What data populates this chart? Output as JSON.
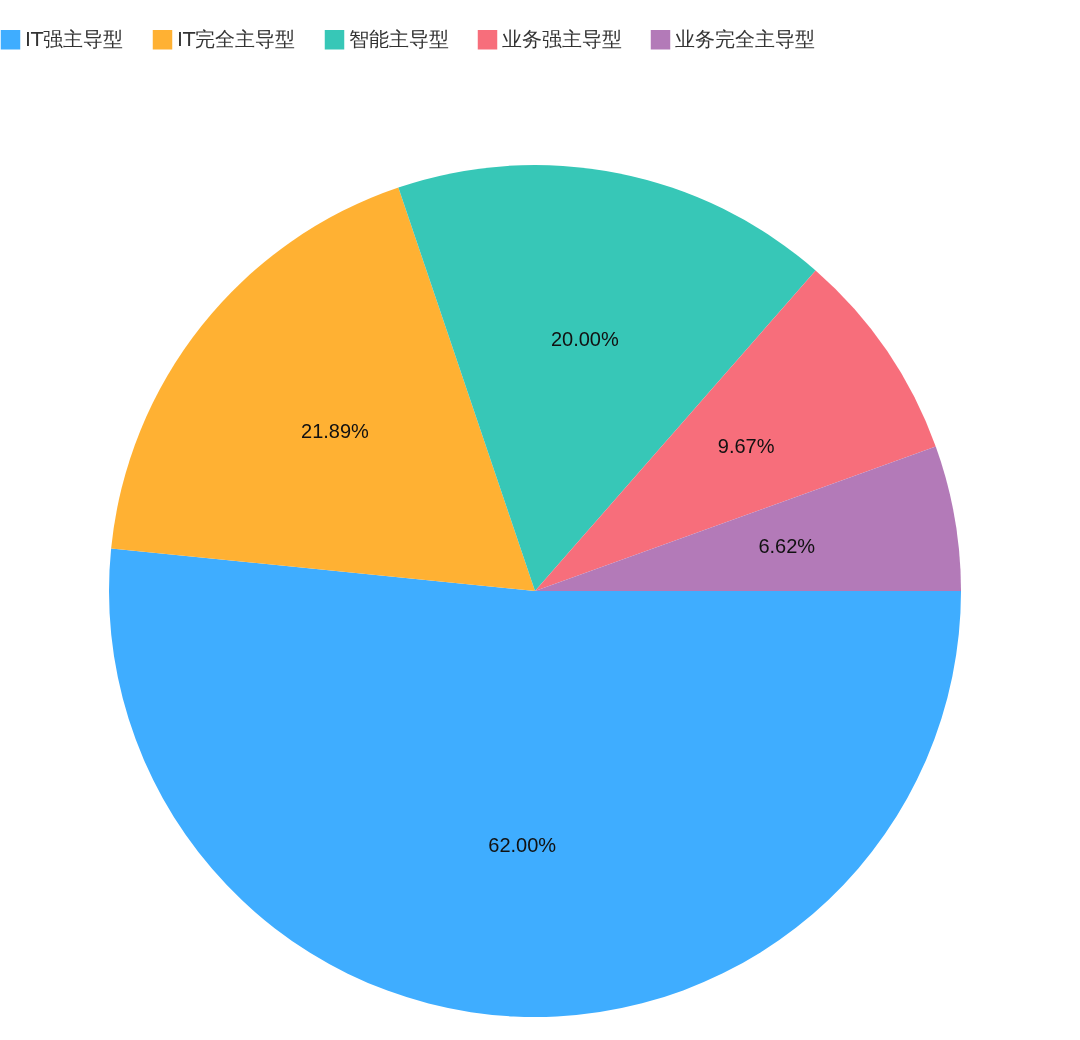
{
  "chart_data": {
    "type": "pie",
    "categories": [
      "IT强主导型",
      "IT完全主导型",
      "智能主导型",
      "业务强主导型",
      "业务完全主导型"
    ],
    "values": [
      62,
      21.89,
      20,
      9.67,
      6.62
    ],
    "colors": [
      "#3fadff",
      "#ffb133",
      "#37c7b7",
      "#f76e7b",
      "#b37ab8"
    ],
    "value_labels": [
      "62.00%",
      "21.89%",
      "20.00%",
      "9.67%",
      "6.62%"
    ],
    "legend": "top"
  }
}
